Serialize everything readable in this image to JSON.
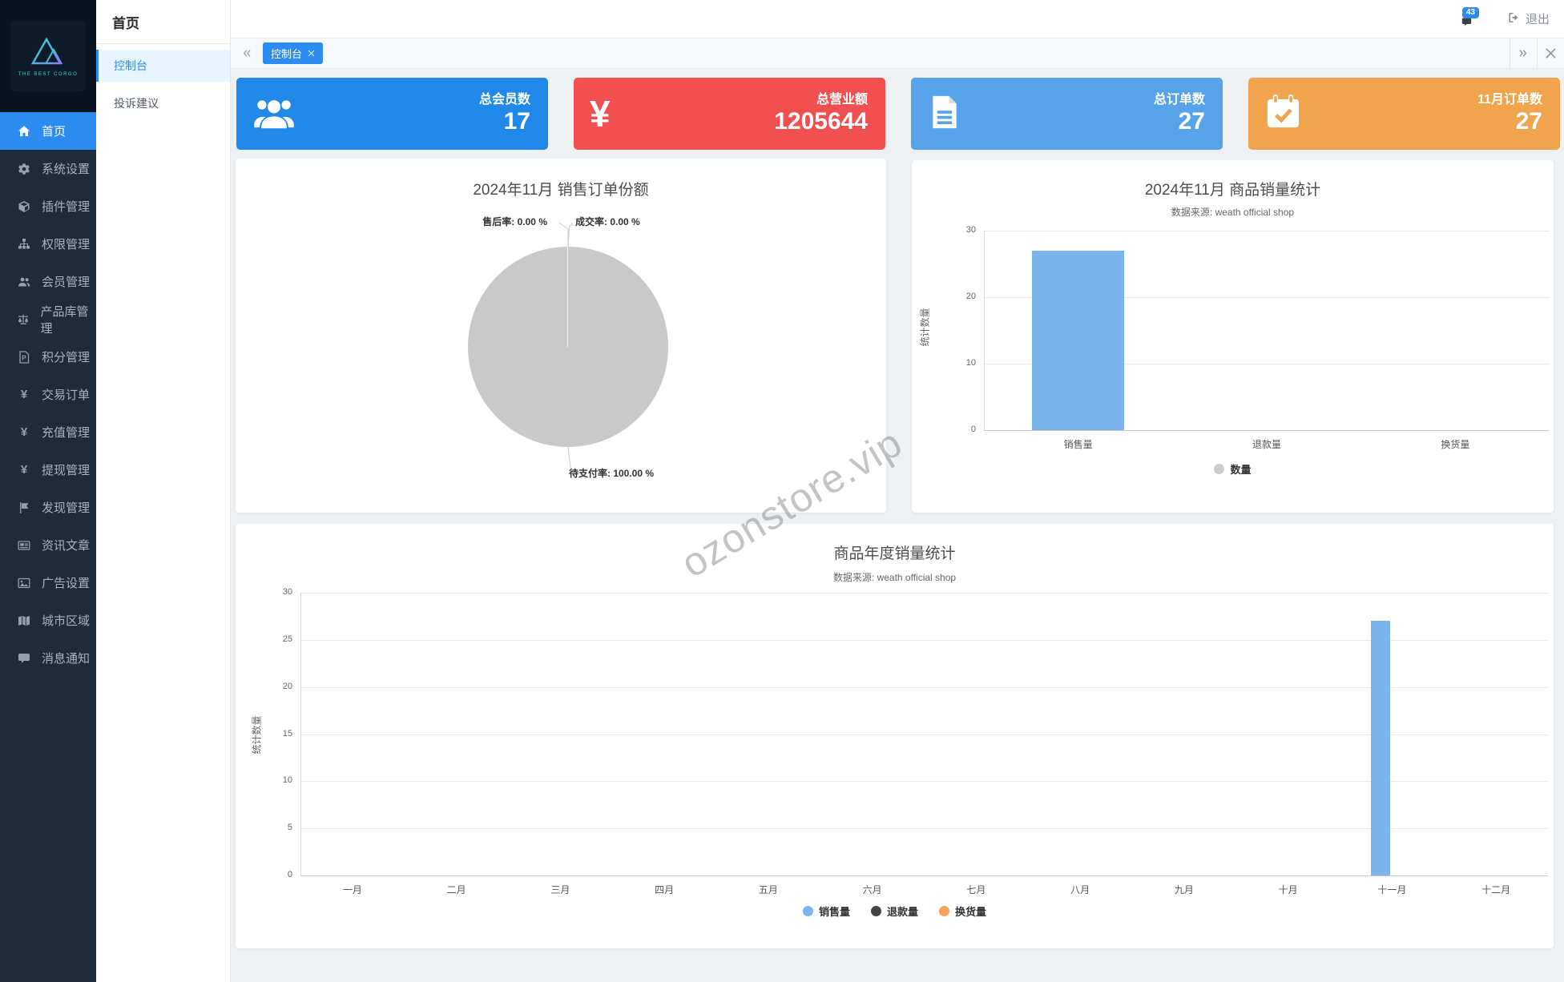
{
  "brand": {
    "logo_text": "THE BEST CORGO"
  },
  "sidebar": {
    "items": [
      {
        "key": "home",
        "label": "首页",
        "icon": "home-icon",
        "active": true
      },
      {
        "key": "system-settings",
        "label": "系统设置",
        "icon": "gear-icon",
        "active": false
      },
      {
        "key": "plugin-management",
        "label": "插件管理",
        "icon": "cube-icon",
        "active": false
      },
      {
        "key": "permission-management",
        "label": "权限管理",
        "icon": "sitemap-icon",
        "active": false
      },
      {
        "key": "member-management",
        "label": "会员管理",
        "icon": "users-icon",
        "active": false
      },
      {
        "key": "product-library",
        "label": "产品库管理",
        "icon": "scale-icon",
        "active": false
      },
      {
        "key": "points-management",
        "label": "积分管理",
        "icon": "file-p-icon",
        "active": false
      },
      {
        "key": "trade-orders",
        "label": "交易订单",
        "icon": "yen-icon",
        "active": false
      },
      {
        "key": "recharge-management",
        "label": "充值管理",
        "icon": "yen-icon",
        "active": false
      },
      {
        "key": "withdrawal-management",
        "label": "提现管理",
        "icon": "yen-icon",
        "active": false
      },
      {
        "key": "discovery-management",
        "label": "发现管理",
        "icon": "flag-icon",
        "active": false
      },
      {
        "key": "news-articles",
        "label": "资讯文章",
        "icon": "newspaper-icon",
        "active": false
      },
      {
        "key": "ad-settings",
        "label": "广告设置",
        "icon": "image-icon",
        "active": false
      },
      {
        "key": "city-regions",
        "label": "城市区域",
        "icon": "map-icon",
        "active": false
      },
      {
        "key": "message-notifications",
        "label": "消息通知",
        "icon": "comment-icon",
        "active": false
      }
    ]
  },
  "submenu": {
    "title": "首页",
    "items": [
      {
        "key": "console",
        "label": "控制台",
        "active": true
      },
      {
        "key": "suggestions",
        "label": "投诉建议",
        "active": false
      }
    ]
  },
  "navbar": {
    "badge_count": "43",
    "logout_label": "退出"
  },
  "tabbar": {
    "tabs": [
      {
        "label": "控制台"
      }
    ]
  },
  "cards": [
    {
      "key": "total-members",
      "label": "总会员数",
      "value": "17",
      "color": "#2088e9",
      "icon": "users-icon"
    },
    {
      "key": "total-revenue",
      "label": "总营业额",
      "value": "1205644",
      "color": "#f25050",
      "icon": "yen-icon"
    },
    {
      "key": "total-orders",
      "label": "总订单数",
      "value": "27",
      "color": "#57a3ea",
      "icon": "file-text-icon"
    },
    {
      "key": "nov-orders",
      "label": "11月订单数",
      "value": "27",
      "color": "#f0a44d",
      "icon": "calendar-check-icon"
    }
  ],
  "watermark": "ozonstore.vip",
  "chart_data": [
    {
      "type": "pie",
      "title": "2024年11月 销售订单份额",
      "labels": [
        "售后率: 0.00 %",
        "成交率: 0.00 %",
        "待支付率: 100.00 %"
      ],
      "slices": [
        {
          "name": "售后率",
          "value": 0
        },
        {
          "name": "成交率",
          "value": 0
        },
        {
          "name": "待支付率",
          "value": 100
        }
      ],
      "slice_color": "#c9c9c9",
      "legend_position": "none",
      "grid": false
    },
    {
      "type": "bar",
      "title": "2024年11月 商品销量统计",
      "subtitle": "数据来源: weath official shop",
      "ylabel": "统计数量",
      "xlabel": "",
      "ylim": [
        0,
        30
      ],
      "yticks": [
        30,
        20,
        10,
        0
      ],
      "grid": true,
      "categories": [
        "销售量",
        "退款量",
        "换货量"
      ],
      "series": [
        {
          "name": "数量",
          "color": "#7cb5ec",
          "values": [
            27,
            0,
            0
          ]
        }
      ],
      "legend": [
        {
          "label": "数量",
          "color": "#cccccc"
        }
      ],
      "legend_position": "bottom"
    },
    {
      "type": "bar",
      "title": "商品年度销量统计",
      "subtitle": "数据来源: weath official shop",
      "ylabel": "统计数量",
      "xlabel": "",
      "ylim": [
        0,
        30
      ],
      "yticks": [
        30,
        25,
        20,
        15,
        10,
        5,
        0
      ],
      "grid": true,
      "categories": [
        "一月",
        "二月",
        "三月",
        "四月",
        "五月",
        "六月",
        "七月",
        "八月",
        "九月",
        "十月",
        "十一月",
        "十二月"
      ],
      "series": [
        {
          "name": "销售量",
          "color": "#7cb5ec",
          "values": [
            0,
            0,
            0,
            0,
            0,
            0,
            0,
            0,
            0,
            0,
            27,
            0
          ]
        },
        {
          "name": "退款量",
          "color": "#434348",
          "values": [
            0,
            0,
            0,
            0,
            0,
            0,
            0,
            0,
            0,
            0,
            0,
            0
          ]
        },
        {
          "name": "换货量",
          "color": "#f7a35c",
          "values": [
            0,
            0,
            0,
            0,
            0,
            0,
            0,
            0,
            0,
            0,
            0,
            0
          ]
        }
      ],
      "legend": [
        {
          "label": "销售量",
          "color": "#7cb5ec"
        },
        {
          "label": "退款量",
          "color": "#434348"
        },
        {
          "label": "换货量",
          "color": "#f7a35c"
        }
      ],
      "legend_position": "bottom"
    }
  ]
}
